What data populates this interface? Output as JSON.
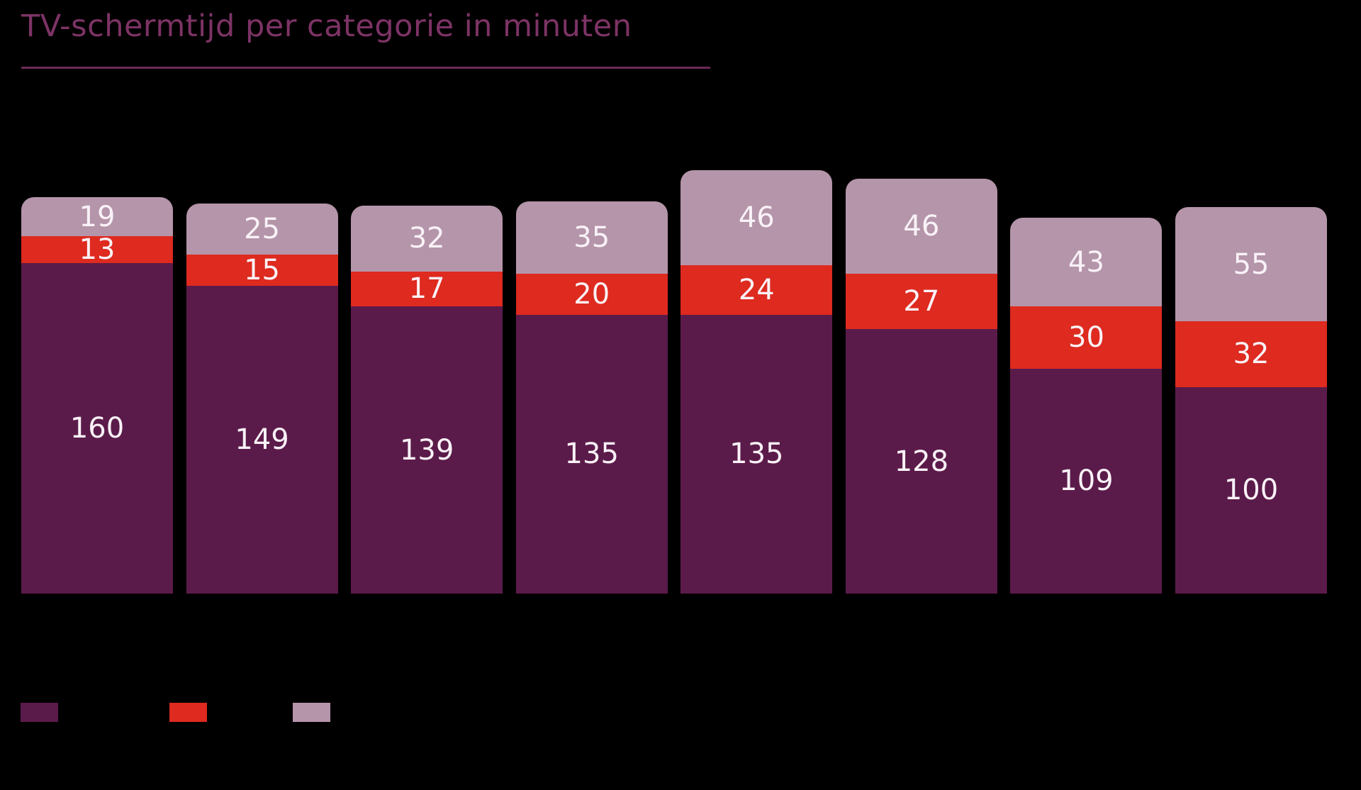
{
  "title": "TV-schermtijd per categorie in minuten",
  "colors": {
    "background": "#000000",
    "title_text": "#7d3365",
    "title_underline": "#6d2a58",
    "segment_dark_purple": "#5b1b4a",
    "segment_red": "#de2a1f",
    "segment_mauve": "#b595aa",
    "value_label": "#f9f2f7"
  },
  "chart_data": {
    "type": "bar",
    "stacked": true,
    "title": "TV-schermtijd per categorie in minuten",
    "unit": "minuten",
    "orientation": "vertical",
    "bar_count": 8,
    "category_labels_visible": false,
    "series": [
      {
        "name": "bottom-dark-purple",
        "color": "#5b1b4a",
        "values": [
          160,
          149,
          139,
          135,
          135,
          128,
          109,
          100
        ]
      },
      {
        "name": "middle-red",
        "color": "#de2a1f",
        "values": [
          13,
          15,
          17,
          20,
          24,
          27,
          30,
          32
        ]
      },
      {
        "name": "top-mauve",
        "color": "#b595aa",
        "values": [
          19,
          25,
          32,
          35,
          46,
          46,
          43,
          55
        ]
      }
    ],
    "totals": [
      192,
      189,
      188,
      190,
      205,
      201,
      182,
      187
    ],
    "value_labels_shown_inside_segments": true,
    "legend": {
      "position": "bottom-left",
      "labels_visible": false,
      "swatches": [
        {
          "name": "swatch-dark-purple",
          "color": "#5b1b4a"
        },
        {
          "name": "swatch-red",
          "color": "#de2a1f"
        },
        {
          "name": "swatch-mauve",
          "color": "#b595aa"
        }
      ]
    }
  }
}
